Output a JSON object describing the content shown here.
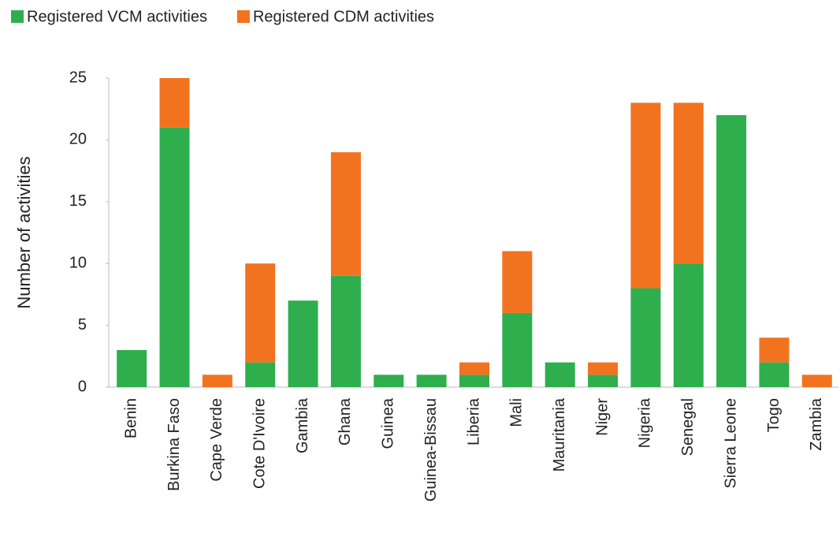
{
  "chart_data": {
    "type": "stacked_bar",
    "y_label": "Number of activities",
    "categories": [
      "Benin",
      "Burkina Faso",
      "Cape Verde",
      "Cote D'Ivoire",
      "Gambia",
      "Ghana",
      "Guinea",
      "Guinea-Bissau",
      "Liberia",
      "Mali",
      "Mauritania",
      "Niger",
      "Nigeria",
      "Senegal",
      "Sierra Leone",
      "Togo",
      "Zambia"
    ],
    "series": [
      {
        "name": "Registered VCM activities",
        "color": "#2fae4e",
        "values": [
          3,
          21,
          0,
          2,
          7,
          9,
          1,
          1,
          1,
          6,
          2,
          1,
          8,
          10,
          22,
          2,
          0
        ]
      },
      {
        "name": "Registered CDM activities",
        "color": "#f2731f",
        "values": [
          0,
          4,
          1,
          8,
          0,
          10,
          0,
          0,
          1,
          5,
          0,
          1,
          15,
          13,
          0,
          2,
          1
        ]
      }
    ],
    "ylim": [
      0,
      25
    ],
    "yticks": [
      0,
      5,
      10,
      15,
      20,
      25
    ],
    "grid": false,
    "legend": "top-left"
  }
}
